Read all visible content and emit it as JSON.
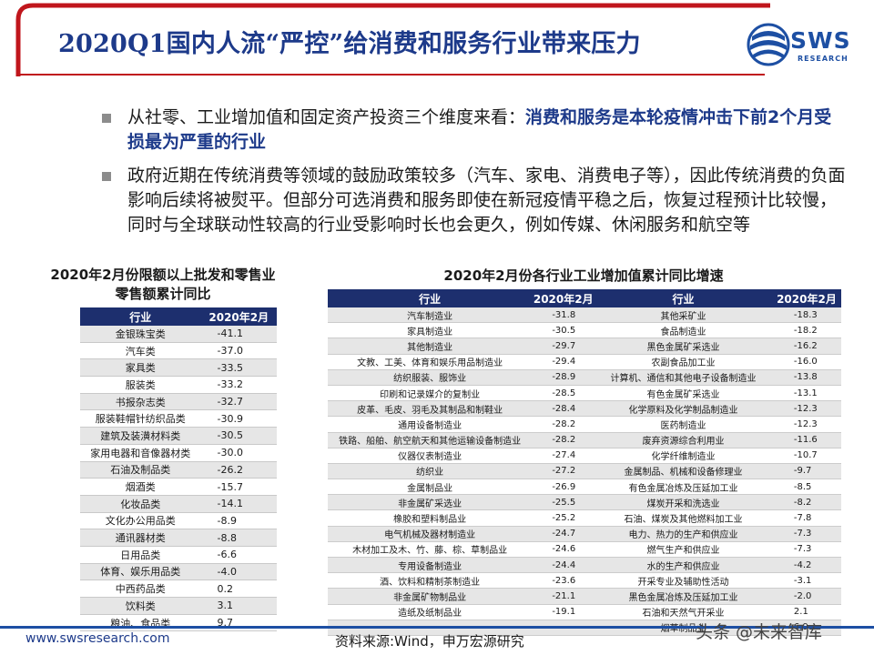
{
  "header": {
    "title": "2020Q1国内人流“严控”给消费和服务行业带来压力",
    "logo_text": "SWS",
    "logo_sub": "RESEARCH",
    "accent_color": "#1d3a8a",
    "frame_color": "#c0161c"
  },
  "bullets": [
    {
      "text": "从社零、工业增加值和固定资产投资三个维度来看：",
      "highlight": "消费和服务是本轮疫情冲击下前2个月受损最为严重的行业"
    },
    {
      "text": "政府近期在传统消费等领域的鼓励政策较多（汽车、家电、消费电子等），因此传统消费的负面影响后续将被熨平。但部分可选消费和服务即使在新冠疫情平稳之后，恢复过程预计比较慢，同时与全球联动性较高的行业受影响时长也会更久，例如传媒、休闲服务和航空等",
      "highlight": ""
    }
  ],
  "left_table": {
    "title": "2020年2月份限额以上批发和零售业零售额累计同比",
    "headers": [
      "行业",
      "2020年2月"
    ],
    "rows": [
      [
        "金银珠宝类",
        "-41.1"
      ],
      [
        "汽车类",
        "-37.0"
      ],
      [
        "家具类",
        "-33.5"
      ],
      [
        "服装类",
        "-33.2"
      ],
      [
        "书报杂志类",
        "-32.7"
      ],
      [
        "服装鞋帽针纺织品类",
        "-30.9"
      ],
      [
        "建筑及装潢材料类",
        "-30.5"
      ],
      [
        "家用电器和音像器材类",
        "-30.0"
      ],
      [
        "石油及制品类",
        "-26.2"
      ],
      [
        "烟酒类",
        "-15.7"
      ],
      [
        "化妆品类",
        "-14.1"
      ],
      [
        "文化办公用品类",
        "-8.9"
      ],
      [
        "通讯器材类",
        "-8.8"
      ],
      [
        "日用品类",
        "-6.6"
      ],
      [
        "体育、娱乐用品类",
        "-4.0"
      ],
      [
        "中西药品类",
        "0.2"
      ],
      [
        "饮料类",
        "3.1"
      ],
      [
        "粮油、食品类",
        "9.7"
      ]
    ]
  },
  "right_table": {
    "title": "2020年2月份各行业工业增加值累计同比增速",
    "headers": [
      "行业",
      "2020年2月",
      "行业",
      "2020年2月"
    ],
    "rows": [
      [
        "汽车制造业",
        "-31.8",
        "其他采矿业",
        "-18.3"
      ],
      [
        "家具制造业",
        "-30.5",
        "食品制造业",
        "-18.2"
      ],
      [
        "其他制造业",
        "-29.7",
        "黑色金属矿采选业",
        "-16.2"
      ],
      [
        "文教、工美、体育和娱乐用品制造业",
        "-29.4",
        "农副食品加工业",
        "-16.0"
      ],
      [
        "纺织服装、服饰业",
        "-28.9",
        "计算机、通信和其他电子设备制造业",
        "-13.8"
      ],
      [
        "印刷和记录媒介的复制业",
        "-28.5",
        "有色金属矿采选业",
        "-13.1"
      ],
      [
        "皮革、毛皮、羽毛及其制品和制鞋业",
        "-28.4",
        "化学原料及化学制品制造业",
        "-12.3"
      ],
      [
        "通用设备制造业",
        "-28.2",
        "医药制造业",
        "-12.3"
      ],
      [
        "铁路、船舶、航空航天和其他运输设备制造业",
        "-28.2",
        "废弃资源综合利用业",
        "-11.6"
      ],
      [
        "仪器仪表制造业",
        "-27.4",
        "化学纤维制造业",
        "-10.7"
      ],
      [
        "纺织业",
        "-27.2",
        "金属制品、机械和设备修理业",
        "-9.7"
      ],
      [
        "金属制品业",
        "-26.9",
        "有色金属冶炼及压延加工业",
        "-8.5"
      ],
      [
        "非金属矿采选业",
        "-25.5",
        "煤炭开采和洗选业",
        "-8.2"
      ],
      [
        "橡胶和塑料制品业",
        "-25.2",
        "石油、煤炭及其他燃料加工业",
        "-7.8"
      ],
      [
        "电气机械及器材制造业",
        "-24.7",
        "电力、热力的生产和供应业",
        "-7.3"
      ],
      [
        "木材加工及木、竹、藤、棕、草制品业",
        "-24.6",
        "燃气生产和供应业",
        "-7.3"
      ],
      [
        "专用设备制造业",
        "-24.4",
        "水的生产和供应业",
        "-4.2"
      ],
      [
        "酒、饮料和精制茶制造业",
        "-23.6",
        "开采专业及辅助性活动",
        "-3.1"
      ],
      [
        "非金属矿物制品业",
        "-21.1",
        "黑色金属冶炼及压延加工业",
        "-2.0"
      ],
      [
        "造纸及纸制品业",
        "-19.1",
        "石油和天然气开采业",
        "2.1"
      ],
      [
        "",
        "",
        "烟草制品业",
        "6.9"
      ]
    ]
  },
  "footer": {
    "url": "www.swsresearch.com",
    "source": "资料来源:Wind，申万宏源研究",
    "watermark": "头条 @未来智库"
  }
}
